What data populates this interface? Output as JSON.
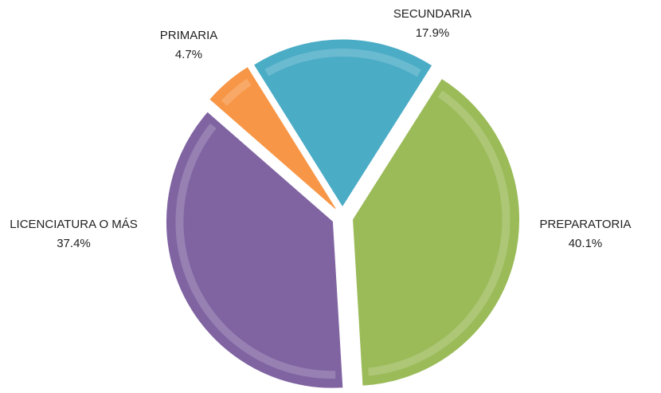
{
  "chart_data": {
    "type": "pie",
    "categories": [
      "SECUNDARIA",
      "PREPARATORIA",
      "LICENCIATURA O MÁS",
      "PRIMARIA"
    ],
    "values": [
      17.9,
      40.1,
      37.4,
      4.7
    ],
    "value_labels": [
      "17.9%",
      "40.1%",
      "37.4%",
      "4.7%"
    ],
    "colors": [
      "#4bacc6",
      "#9bbb59",
      "#8064a2",
      "#f79646"
    ]
  }
}
